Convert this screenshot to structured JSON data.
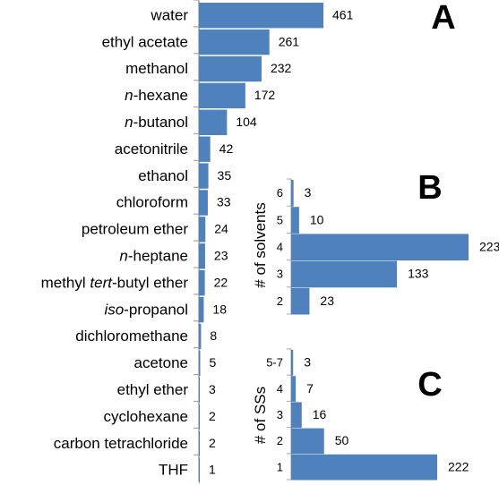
{
  "colors": {
    "bar": "#4f81bd",
    "axis": "#a6a6a6",
    "text": "#000000"
  },
  "chart_data": [
    {
      "type": "bar",
      "orientation": "horizontal",
      "panel": "A",
      "categories": [
        [
          {
            "t": "water"
          }
        ],
        [
          {
            "t": "ethyl acetate"
          }
        ],
        [
          {
            "t": "methanol"
          }
        ],
        [
          {
            "t": "n",
            "i": true
          },
          {
            "t": "-hexane"
          }
        ],
        [
          {
            "t": "n",
            "i": true
          },
          {
            "t": "-butanol"
          }
        ],
        [
          {
            "t": "acetonitrile"
          }
        ],
        [
          {
            "t": "ethanol"
          }
        ],
        [
          {
            "t": "chloroform"
          }
        ],
        [
          {
            "t": "petroleum ether"
          }
        ],
        [
          {
            "t": "n",
            "i": true
          },
          {
            "t": "-heptane"
          }
        ],
        [
          {
            "t": "methyl "
          },
          {
            "t": "tert",
            "i": true
          },
          {
            "t": "-butyl ether"
          }
        ],
        [
          {
            "t": "iso",
            "i": true
          },
          {
            "t": "-propanol"
          }
        ],
        [
          {
            "t": "dichloromethane"
          }
        ],
        [
          {
            "t": "acetone"
          }
        ],
        [
          {
            "t": "ethyl ether"
          }
        ],
        [
          {
            "t": "cyclohexane"
          }
        ],
        [
          {
            "t": "carbon tetrachloride"
          }
        ],
        [
          {
            "t": "THF"
          }
        ]
      ],
      "values": [
        461,
        261,
        232,
        172,
        104,
        42,
        35,
        33,
        24,
        23,
        22,
        18,
        8,
        5,
        3,
        2,
        2,
        1
      ]
    },
    {
      "type": "bar",
      "orientation": "horizontal",
      "panel": "B",
      "ylabel": "# of solvents",
      "categories": [
        "6",
        "5",
        "4",
        "3",
        "2"
      ],
      "values": [
        3,
        10,
        223,
        133,
        23
      ]
    },
    {
      "type": "bar",
      "orientation": "horizontal",
      "panel": "C",
      "ylabel": "# of SSs",
      "categories": [
        "5-7",
        "4",
        "3",
        "2",
        "1"
      ],
      "values": [
        3,
        7,
        16,
        50,
        222
      ]
    }
  ]
}
